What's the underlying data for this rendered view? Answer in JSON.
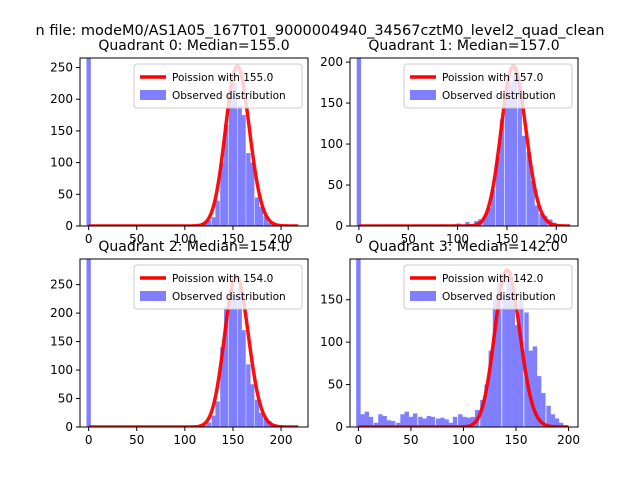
{
  "suptitle": "n file: modeM0/AS1A05_167T01_9000004940_34567cztM0_level2_quad_clean",
  "colors": {
    "hist": "#7f7fff",
    "fit": "#ff0000",
    "axis": "#000000"
  },
  "chart_data": [
    {
      "type": "bar",
      "title": "Quadrant 0: Median=155.0",
      "median": 155.0,
      "xlim": [
        -9,
        228
      ],
      "ylim": [
        0,
        265
      ],
      "xticks": [
        0,
        50,
        100,
        150,
        200
      ],
      "yticks": [
        0,
        50,
        100,
        150,
        200,
        250
      ],
      "legend": {
        "position": "top-right",
        "line_label": "Poission with 155.0",
        "bar_label": "Observed distribution"
      },
      "bin_width": 4.5,
      "bins": [
        {
          "x": 0,
          "y": 265
        },
        {
          "x": 103,
          "y": 2
        },
        {
          "x": 107,
          "y": 1
        },
        {
          "x": 112,
          "y": 3
        },
        {
          "x": 116,
          "y": 1
        },
        {
          "x": 121,
          "y": 6
        },
        {
          "x": 125,
          "y": 9
        },
        {
          "x": 130,
          "y": 14
        },
        {
          "x": 134,
          "y": 40
        },
        {
          "x": 139,
          "y": 100
        },
        {
          "x": 143,
          "y": 160
        },
        {
          "x": 148,
          "y": 205
        },
        {
          "x": 152,
          "y": 225
        },
        {
          "x": 157,
          "y": 190
        },
        {
          "x": 161,
          "y": 175
        },
        {
          "x": 166,
          "y": 115
        },
        {
          "x": 170,
          "y": 100
        },
        {
          "x": 175,
          "y": 45
        },
        {
          "x": 179,
          "y": 30
        },
        {
          "x": 184,
          "y": 15
        },
        {
          "x": 188,
          "y": 5
        },
        {
          "x": 193,
          "y": 3
        },
        {
          "x": 197,
          "y": 2
        },
        {
          "x": 202,
          "y": 1
        },
        {
          "x": 206,
          "y": 1
        },
        {
          "x": 211,
          "y": 1
        }
      ],
      "fit": {
        "lambda": 155.0,
        "amplitude": 252,
        "x_range": [
          0,
          218
        ]
      }
    },
    {
      "type": "bar",
      "title": "Quadrant 1: Median=157.0",
      "median": 157.0,
      "xlim": [
        -9,
        222
      ],
      "ylim": [
        0,
        205
      ],
      "xticks": [
        0,
        50,
        100,
        150,
        200
      ],
      "yticks": [
        0,
        50,
        100,
        150,
        200
      ],
      "legend": {
        "position": "top-right",
        "line_label": "Poission with 157.0",
        "bar_label": "Observed distribution"
      },
      "bin_width": 4.4,
      "bins": [
        {
          "x": 0,
          "y": 205
        },
        {
          "x": 75,
          "y": 1
        },
        {
          "x": 84,
          "y": 2
        },
        {
          "x": 88,
          "y": 1
        },
        {
          "x": 97,
          "y": 2
        },
        {
          "x": 101,
          "y": 3
        },
        {
          "x": 110,
          "y": 5
        },
        {
          "x": 119,
          "y": 6
        },
        {
          "x": 123,
          "y": 8
        },
        {
          "x": 128,
          "y": 12
        },
        {
          "x": 132,
          "y": 22
        },
        {
          "x": 136,
          "y": 45
        },
        {
          "x": 141,
          "y": 85
        },
        {
          "x": 145,
          "y": 130
        },
        {
          "x": 150,
          "y": 170
        },
        {
          "x": 154,
          "y": 175
        },
        {
          "x": 158,
          "y": 185
        },
        {
          "x": 163,
          "y": 170
        },
        {
          "x": 167,
          "y": 110
        },
        {
          "x": 172,
          "y": 90
        },
        {
          "x": 176,
          "y": 55
        },
        {
          "x": 180,
          "y": 25
        },
        {
          "x": 185,
          "y": 15
        },
        {
          "x": 189,
          "y": 12
        },
        {
          "x": 194,
          "y": 8
        },
        {
          "x": 198,
          "y": 4
        },
        {
          "x": 202,
          "y": 2
        },
        {
          "x": 207,
          "y": 1
        },
        {
          "x": 211,
          "y": 1
        }
      ],
      "fit": {
        "lambda": 157.0,
        "amplitude": 195,
        "x_range": [
          0,
          214
        ]
      }
    },
    {
      "type": "bar",
      "title": "Quadrant 2: Median=154.0",
      "median": 154.0,
      "xlim": [
        -9,
        228
      ],
      "ylim": [
        0,
        295
      ],
      "xticks": [
        0,
        50,
        100,
        150,
        200
      ],
      "yticks": [
        0,
        50,
        100,
        150,
        200,
        250
      ],
      "legend": {
        "position": "top-right",
        "line_label": "Poission with 154.0",
        "bar_label": "Observed distribution"
      },
      "bin_width": 4.5,
      "bins": [
        {
          "x": 0,
          "y": 295
        },
        {
          "x": 112,
          "y": 1
        },
        {
          "x": 116,
          "y": 1
        },
        {
          "x": 121,
          "y": 3
        },
        {
          "x": 125,
          "y": 8
        },
        {
          "x": 130,
          "y": 20
        },
        {
          "x": 134,
          "y": 45
        },
        {
          "x": 139,
          "y": 140
        },
        {
          "x": 143,
          "y": 210
        },
        {
          "x": 148,
          "y": 240
        },
        {
          "x": 152,
          "y": 232
        },
        {
          "x": 157,
          "y": 245
        },
        {
          "x": 161,
          "y": 170
        },
        {
          "x": 166,
          "y": 110
        },
        {
          "x": 170,
          "y": 75
        },
        {
          "x": 175,
          "y": 48
        },
        {
          "x": 179,
          "y": 25
        },
        {
          "x": 184,
          "y": 15
        },
        {
          "x": 188,
          "y": 10
        },
        {
          "x": 193,
          "y": 5
        },
        {
          "x": 197,
          "y": 3
        },
        {
          "x": 202,
          "y": 2
        },
        {
          "x": 206,
          "y": 1
        },
        {
          "x": 211,
          "y": 1
        }
      ],
      "fit": {
        "lambda": 154.0,
        "amplitude": 265,
        "x_range": [
          0,
          218
        ]
      }
    },
    {
      "type": "bar",
      "title": "Quadrant 3: Median=142.0",
      "median": 142.0,
      "xlim": [
        -8,
        209
      ],
      "ylim": [
        0,
        198
      ],
      "xticks": [
        0,
        50,
        100,
        150,
        200
      ],
      "yticks": [
        0,
        50,
        100,
        150
      ],
      "legend": {
        "position": "top-right",
        "line_label": "Poission with 142.0",
        "bar_label": "Observed distribution"
      },
      "bin_width": 4.2,
      "bins": [
        {
          "x": 0,
          "y": 198
        },
        {
          "x": 4,
          "y": 15
        },
        {
          "x": 8,
          "y": 18
        },
        {
          "x": 12,
          "y": 12
        },
        {
          "x": 17,
          "y": 5
        },
        {
          "x": 21,
          "y": 15
        },
        {
          "x": 25,
          "y": 13
        },
        {
          "x": 29,
          "y": 8
        },
        {
          "x": 33,
          "y": 7
        },
        {
          "x": 38,
          "y": 5
        },
        {
          "x": 42,
          "y": 15
        },
        {
          "x": 46,
          "y": 18
        },
        {
          "x": 50,
          "y": 12
        },
        {
          "x": 54,
          "y": 16
        },
        {
          "x": 59,
          "y": 12
        },
        {
          "x": 63,
          "y": 10
        },
        {
          "x": 67,
          "y": 13
        },
        {
          "x": 71,
          "y": 12
        },
        {
          "x": 76,
          "y": 10
        },
        {
          "x": 80,
          "y": 11
        },
        {
          "x": 84,
          "y": 9
        },
        {
          "x": 88,
          "y": 5
        },
        {
          "x": 92,
          "y": 12
        },
        {
          "x": 97,
          "y": 15
        },
        {
          "x": 101,
          "y": 12
        },
        {
          "x": 105,
          "y": 11
        },
        {
          "x": 109,
          "y": 12
        },
        {
          "x": 113,
          "y": 20
        },
        {
          "x": 118,
          "y": 32
        },
        {
          "x": 122,
          "y": 50
        },
        {
          "x": 126,
          "y": 90
        },
        {
          "x": 130,
          "y": 150
        },
        {
          "x": 134,
          "y": 170
        },
        {
          "x": 139,
          "y": 155
        },
        {
          "x": 143,
          "y": 175
        },
        {
          "x": 147,
          "y": 165
        },
        {
          "x": 151,
          "y": 120
        },
        {
          "x": 155,
          "y": 150
        },
        {
          "x": 160,
          "y": 135
        },
        {
          "x": 164,
          "y": 90
        },
        {
          "x": 168,
          "y": 95
        },
        {
          "x": 172,
          "y": 60
        },
        {
          "x": 176,
          "y": 40
        },
        {
          "x": 181,
          "y": 25
        },
        {
          "x": 185,
          "y": 15
        },
        {
          "x": 189,
          "y": 10
        },
        {
          "x": 193,
          "y": 5
        },
        {
          "x": 197,
          "y": 2
        }
      ],
      "fit": {
        "lambda": 142.0,
        "amplitude": 185,
        "x_range": [
          0,
          200
        ]
      }
    }
  ]
}
